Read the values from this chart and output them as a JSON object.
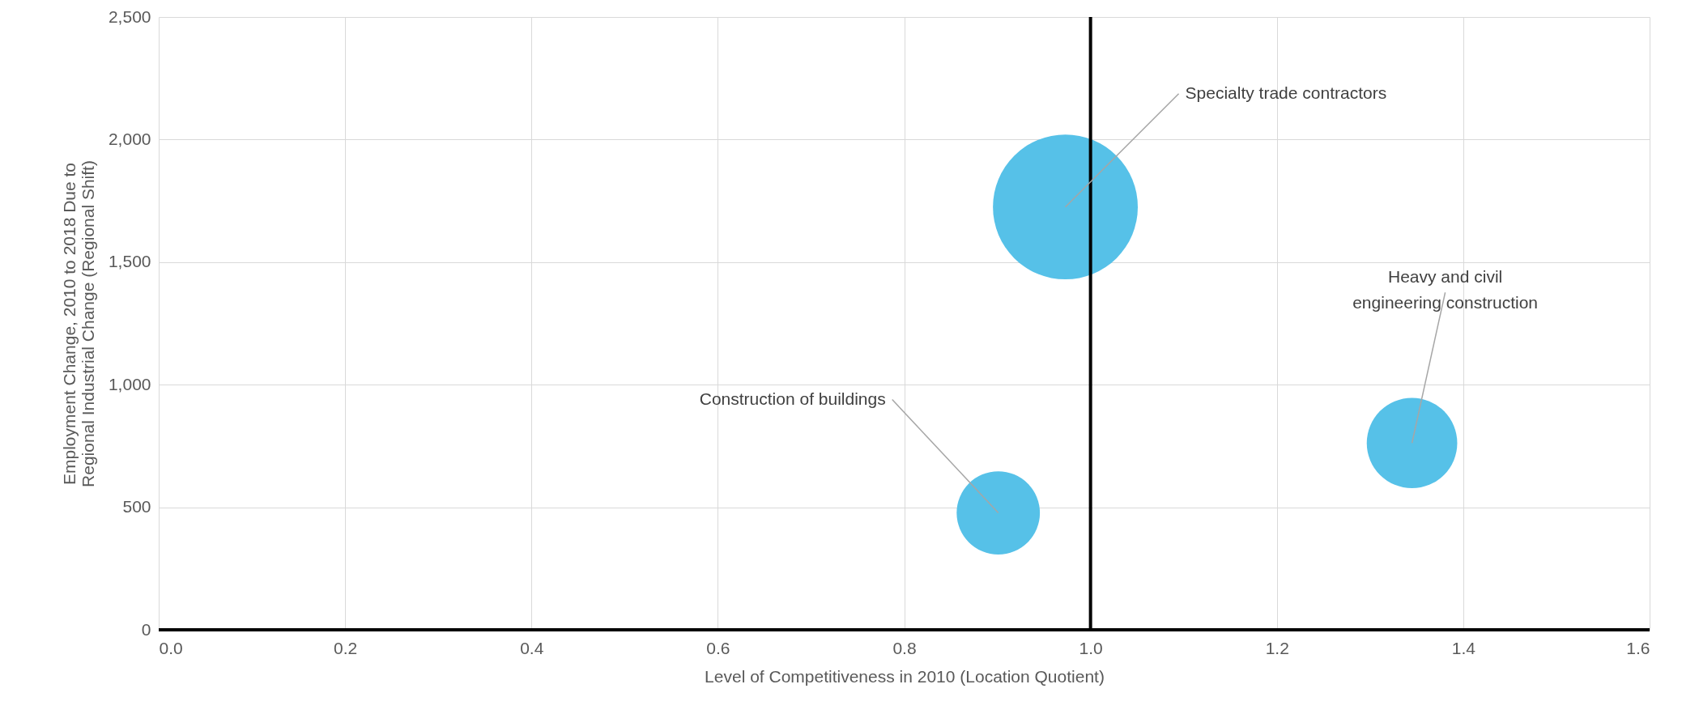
{
  "chart_data": {
    "type": "bubble",
    "xlabel": "Level of Competitiveness in 2010 (Location Quotient)",
    "ylabel": "Employment Change, 2010 to 2018 Due to Regional Industrial Change (Regional Shift)",
    "series": [
      {
        "color": "#56c1e8",
        "x": [
          0.973,
          0.901,
          1.345
        ],
        "values": [
          1725,
          477,
          762
        ],
        "sizes": [
          1,
          0.33,
          0.39
        ]
      }
    ],
    "xlim": [
      0,
      1.6
    ],
    "xticks": [
      {
        "value": 0,
        "label": "0.0"
      },
      {
        "value": 0.2,
        "label": "0.2"
      },
      {
        "value": 0.4,
        "label": "0.4"
      },
      {
        "value": 0.6,
        "label": "0.6"
      },
      {
        "value": 0.8,
        "label": "0.8"
      },
      {
        "value": 1,
        "label": "1.0"
      },
      {
        "value": 1.2,
        "label": "1.2"
      },
      {
        "value": 1.4,
        "label": "1.4"
      },
      {
        "value": 1.6,
        "label": "1.6"
      }
    ],
    "ylim": [
      0,
      2500
    ],
    "yticks": [
      0,
      500,
      {
        "value": 1000,
        "label": "1,000"
      },
      {
        "value": 1500,
        "label": "1,500"
      },
      {
        "value": 2000,
        "label": "2,000"
      },
      {
        "value": 2500,
        "label": "2,500"
      }
    ],
    "ref_lines": [
      {
        "axis": "x",
        "value": 1,
        "color": "#000000"
      }
    ],
    "annotations": [
      {
        "text": "Specialty trade contractors",
        "x": 0.973,
        "y": 1725
      },
      {
        "text": "Construction of buildings",
        "x": 0.901,
        "y": 477
      },
      {
        "text": "Heavy and civil engineering construction",
        "x": 1.345,
        "y": 762
      }
    ],
    "grid": true,
    "legend": false,
    "marker": "circle"
  }
}
